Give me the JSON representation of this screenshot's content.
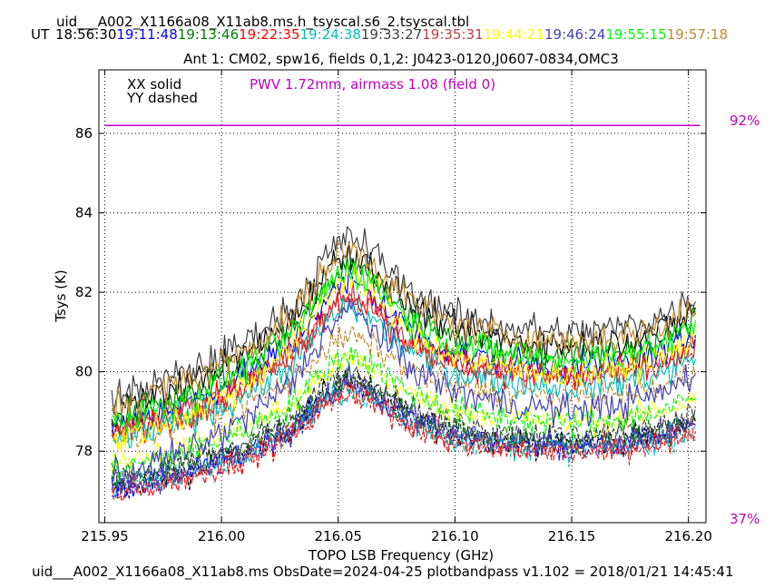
{
  "colors": {
    "pwv": "#c000c0",
    "series": [
      "#000000",
      "#0000ff",
      "#008000",
      "#ff0000",
      "#00bfbf",
      "#404040",
      "#c04040",
      "#ffff00",
      "#4040c0",
      "#00ff00",
      "#bf8a2e"
    ]
  },
  "header": {
    "caltable": "uid___A002_X1166a08_X11ab8.ms.h_tsyscal.s6_2.tsyscal.tbl",
    "ut_label": "UT",
    "times": [
      "18:56:30",
      "19:11:48",
      "19:13:46",
      "19:22:35",
      "19:24:38",
      "19:33:27",
      "19:35:31",
      "19:44:21",
      "19:46:24",
      "19:55:15",
      "19:57:18"
    ],
    "subtitle": "Ant 1: CM02,  spw16,  fields 0,1,2: J0423-0120,J0607-0834,OMC3"
  },
  "legend": {
    "solid": "XX solid",
    "dashed": "YY dashed",
    "pwv": "PWV 1.72mm, airmass 1.08 (field 0)"
  },
  "right_axis": {
    "top": "92%",
    "bottom": "37%"
  },
  "footer": "uid___A002_X1166a08_X11ab8.ms  ObsDate=2024-04-25   plotbandpass v1.102 = 2018/01/21 14:45:41",
  "chart_data": {
    "type": "line",
    "xlabel": "TOPO LSB Frequency (GHz)",
    "ylabel": "Tsys (K)",
    "xlim": [
      215.9475,
      216.2075
    ],
    "ylim": [
      76.2,
      87.6
    ],
    "xticks": [
      215.95,
      216.0,
      216.05,
      216.1,
      216.15,
      216.2
    ],
    "xtick_labels": [
      "215.95",
      "216.00",
      "216.05",
      "216.10",
      "216.15",
      "216.20"
    ],
    "yticks": [
      78,
      80,
      82,
      84,
      86
    ],
    "ytick_labels": [
      "78",
      "80",
      "82",
      "84",
      "86"
    ],
    "grid": true,
    "transmission_curve": {
      "x": [
        215.95,
        216.205
      ],
      "y": [
        86.2,
        86.2
      ]
    },
    "series_shape_x": [
      215.952,
      215.97,
      215.99,
      216.01,
      216.03,
      216.045,
      216.055,
      216.065,
      216.08,
      216.1,
      216.125,
      216.15,
      216.17,
      216.19,
      216.205
    ],
    "series_shape_y": [
      0.0,
      0.25,
      0.55,
      1.0,
      1.6,
      2.5,
      2.85,
      2.55,
      1.9,
      1.45,
      1.25,
      1.15,
      1.25,
      1.45,
      1.85
    ],
    "series": [
      {
        "time": "18:56:30",
        "pol": "XX",
        "base": 79.0,
        "scale": 1.42,
        "noise": 0.4
      },
      {
        "time": "18:56:30",
        "pol": "YY",
        "base": 77.0,
        "scale": 1.0,
        "noise": 0.35
      },
      {
        "time": "19:11:48",
        "pol": "XX",
        "base": 78.6,
        "scale": 1.3,
        "noise": 0.38
      },
      {
        "time": "19:11:48",
        "pol": "YY",
        "base": 77.0,
        "scale": 0.95,
        "noise": 0.33
      },
      {
        "time": "19:13:46",
        "pol": "XX",
        "base": 78.8,
        "scale": 1.38,
        "noise": 0.38
      },
      {
        "time": "19:13:46",
        "pol": "YY",
        "base": 77.2,
        "scale": 0.92,
        "noise": 0.33
      },
      {
        "time": "19:22:35",
        "pol": "XX",
        "base": 78.4,
        "scale": 1.25,
        "noise": 0.38
      },
      {
        "time": "19:22:35",
        "pol": "YY",
        "base": 76.9,
        "scale": 0.92,
        "noise": 0.33
      },
      {
        "time": "19:24:38",
        "pol": "XX",
        "base": 78.2,
        "scale": 1.22,
        "noise": 0.36
      },
      {
        "time": "19:24:38",
        "pol": "YY",
        "base": 77.0,
        "scale": 0.9,
        "noise": 0.33
      },
      {
        "time": "19:33:27",
        "pol": "XX",
        "base": 79.3,
        "scale": 1.45,
        "noise": 0.42
      },
      {
        "time": "19:33:27",
        "pol": "YY",
        "base": 77.3,
        "scale": 0.95,
        "noise": 0.33
      },
      {
        "time": "19:35:31",
        "pol": "XX",
        "base": 78.5,
        "scale": 1.2,
        "noise": 0.36
      },
      {
        "time": "19:35:31",
        "pol": "YY",
        "base": 76.9,
        "scale": 0.93,
        "noise": 0.33
      },
      {
        "time": "19:44:21",
        "pol": "XX",
        "base": 78.2,
        "scale": 1.5,
        "noise": 0.38
      },
      {
        "time": "19:44:21",
        "pol": "YY",
        "base": 77.7,
        "scale": 0.92,
        "noise": 0.33
      },
      {
        "time": "19:46:24",
        "pol": "XX",
        "base": 77.3,
        "scale": 1.5,
        "noise": 0.4
      },
      {
        "time": "19:46:24",
        "pol": "YY",
        "base": 77.0,
        "scale": 0.98,
        "noise": 0.36
      },
      {
        "time": "19:55:15",
        "pol": "XX",
        "base": 78.7,
        "scale": 1.38,
        "noise": 0.4
      },
      {
        "time": "19:55:15",
        "pol": "YY",
        "base": 77.5,
        "scale": 1.05,
        "noise": 0.34
      },
      {
        "time": "19:57:18",
        "pol": "XX",
        "base": 79.1,
        "scale": 1.42,
        "noise": 0.4
      },
      {
        "time": "19:57:18",
        "pol": "YY",
        "base": 78.3,
        "scale": 0.92,
        "noise": 0.34
      }
    ]
  }
}
